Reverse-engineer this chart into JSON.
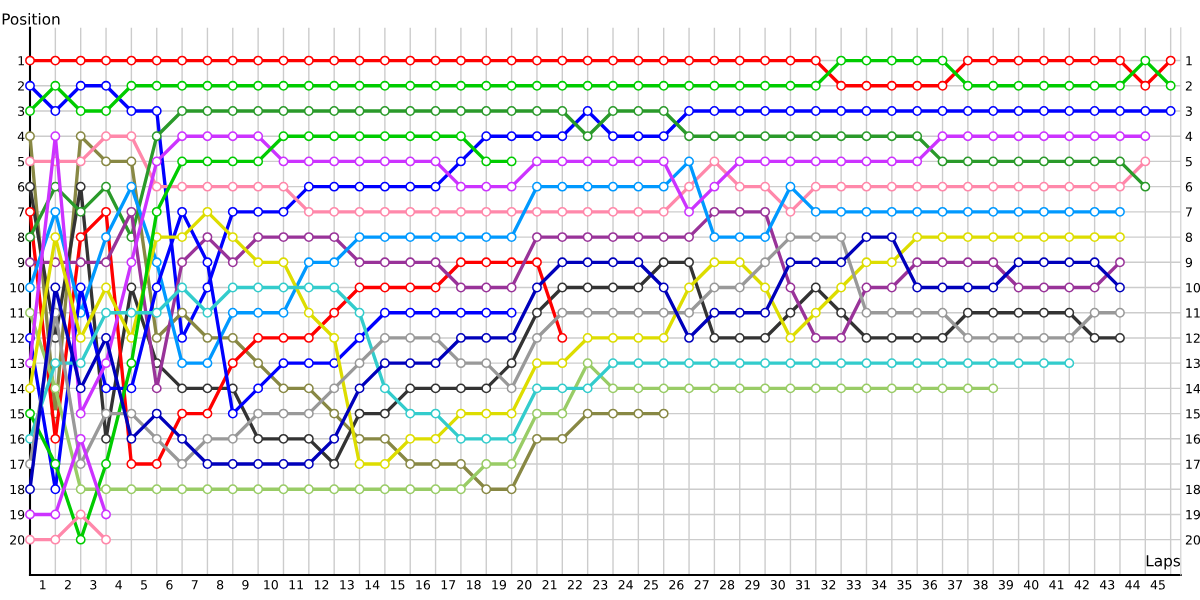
{
  "chart_data": {
    "type": "line",
    "xlabel": "Laps",
    "ylabel": "Position",
    "x": [
      0,
      1,
      2,
      3,
      4,
      5,
      6,
      7,
      8,
      9,
      10,
      11,
      12,
      13,
      14,
      15,
      16,
      17,
      18,
      19,
      20,
      21,
      22,
      23,
      24,
      25,
      26,
      27,
      28,
      29,
      30,
      31,
      32,
      33,
      34,
      35,
      36,
      37,
      38,
      39,
      40,
      41,
      42,
      43,
      44,
      45
    ],
    "xlim": [
      0,
      45.4
    ],
    "ylim": [
      21.4,
      -0.3
    ],
    "y2lim": [
      21.4,
      -0.3
    ],
    "yticks": [
      1,
      2,
      3,
      4,
      5,
      6,
      7,
      8,
      9,
      10,
      11,
      12,
      13,
      14,
      15,
      16,
      17,
      18,
      19,
      20
    ],
    "y2ticks": [
      1,
      2,
      3,
      4,
      5,
      6,
      7,
      8,
      9,
      10,
      11,
      12,
      13,
      14,
      15,
      16,
      17,
      18,
      19,
      20
    ],
    "xticks": [
      {
        "value": 0.5,
        "label": "1"
      },
      {
        "value": 1.5,
        "label": "2"
      },
      {
        "value": 2.5,
        "label": "3"
      },
      {
        "value": 3.5,
        "label": "4"
      },
      {
        "value": 4.5,
        "label": "5"
      },
      {
        "value": 5.5,
        "label": "6"
      },
      {
        "value": 6.5,
        "label": "7"
      },
      {
        "value": 7.5,
        "label": "8"
      },
      {
        "value": 8.5,
        "label": "9"
      },
      {
        "value": 9.5,
        "label": "10"
      },
      {
        "value": 10.5,
        "label": "11"
      },
      {
        "value": 11.5,
        "label": "12"
      },
      {
        "value": 12.5,
        "label": "13"
      },
      {
        "value": 13.5,
        "label": "14"
      },
      {
        "value": 14.5,
        "label": "15"
      },
      {
        "value": 15.5,
        "label": "16"
      },
      {
        "value": 16.5,
        "label": "17"
      },
      {
        "value": 17.5,
        "label": "18"
      },
      {
        "value": 18.5,
        "label": "19"
      },
      {
        "value": 19.5,
        "label": "20"
      },
      {
        "value": 20.5,
        "label": "21"
      },
      {
        "value": 21.5,
        "label": "22"
      },
      {
        "value": 22.5,
        "label": "23"
      },
      {
        "value": 23.5,
        "label": "24"
      },
      {
        "value": 24.5,
        "label": "25"
      },
      {
        "value": 25.5,
        "label": "26"
      },
      {
        "value": 26.5,
        "label": "27"
      },
      {
        "value": 27.5,
        "label": "28"
      },
      {
        "value": 28.5,
        "label": "29"
      },
      {
        "value": 29.5,
        "label": "30"
      },
      {
        "value": 30.5,
        "label": "31"
      },
      {
        "value": 31.5,
        "label": "32"
      },
      {
        "value": 32.5,
        "label": "33"
      },
      {
        "value": 33.5,
        "label": "34"
      },
      {
        "value": 34.5,
        "label": "35"
      },
      {
        "value": 35.5,
        "label": "36"
      },
      {
        "value": 36.5,
        "label": "37"
      },
      {
        "value": 37.5,
        "label": "38"
      },
      {
        "value": 38.5,
        "label": "39"
      },
      {
        "value": 39.5,
        "label": "40"
      },
      {
        "value": 40.5,
        "label": "41"
      },
      {
        "value": 41.5,
        "label": "42"
      },
      {
        "value": 42.5,
        "label": "43"
      },
      {
        "value": 43.5,
        "label": "44"
      },
      {
        "value": 44.5,
        "label": "45"
      },
      {
        "value": 1,
        "label": null
      },
      {
        "value": 2,
        "label": null
      },
      {
        "value": 3,
        "label": null
      },
      {
        "value": 4,
        "label": null
      },
      {
        "value": 5,
        "label": null
      },
      {
        "value": 6,
        "label": null
      },
      {
        "value": 7,
        "label": null
      },
      {
        "value": 8,
        "label": null
      },
      {
        "value": 9,
        "label": null
      },
      {
        "value": 10,
        "label": null
      },
      {
        "value": 11,
        "label": null
      },
      {
        "value": 12,
        "label": null
      },
      {
        "value": 13,
        "label": null
      },
      {
        "value": 14,
        "label": null
      },
      {
        "value": 15,
        "label": null
      },
      {
        "value": 16,
        "label": null
      },
      {
        "value": 17,
        "label": null
      },
      {
        "value": 18,
        "label": null
      },
      {
        "value": 19,
        "label": null
      },
      {
        "value": 20,
        "label": null
      },
      {
        "value": 21,
        "label": null
      },
      {
        "value": 22,
        "label": null
      },
      {
        "value": 23,
        "label": null
      },
      {
        "value": 24,
        "label": null
      },
      {
        "value": 25,
        "label": null
      },
      {
        "value": 26,
        "label": null
      },
      {
        "value": 27,
        "label": null
      },
      {
        "value": 28,
        "label": null
      },
      {
        "value": 29,
        "label": null
      },
      {
        "value": 30,
        "label": null
      },
      {
        "value": 31,
        "label": null
      },
      {
        "value": 32,
        "label": null
      },
      {
        "value": 33,
        "label": null
      },
      {
        "value": 34,
        "label": null
      },
      {
        "value": 35,
        "label": null
      },
      {
        "value": 36,
        "label": null
      },
      {
        "value": 37,
        "label": null
      },
      {
        "value": 38,
        "label": null
      },
      {
        "value": 39,
        "label": null
      },
      {
        "value": 40,
        "label": null
      },
      {
        "value": 41,
        "label": null
      },
      {
        "value": 42,
        "label": null
      },
      {
        "value": 43,
        "label": null
      },
      {
        "value": 44,
        "label": null
      },
      {
        "value": 45,
        "label": null
      }
    ],
    "grid": true,
    "legend": false,
    "marker": "circle",
    "line_style": "solid",
    "series": [
      {
        "color": "#ff0000",
        "values": [
          1,
          1,
          1,
          1,
          1,
          1,
          1,
          1,
          1,
          1,
          1,
          1,
          1,
          1,
          1,
          1,
          1,
          1,
          1,
          1,
          1,
          1,
          1,
          1,
          1,
          1,
          1,
          1,
          1,
          1,
          1,
          1,
          2,
          2,
          2,
          2,
          2,
          1,
          1,
          1,
          1,
          1,
          1,
          1,
          2,
          1
        ]
      },
      {
        "color": "#0000ff",
        "values": [
          2,
          3,
          2,
          2,
          3,
          3,
          12,
          10,
          7,
          7,
          7,
          6,
          6,
          6,
          6,
          6,
          6,
          5,
          4,
          4,
          4,
          4,
          3,
          4,
          4,
          4,
          3,
          3,
          3,
          3,
          3,
          3,
          3,
          3,
          3,
          3,
          3,
          3,
          3,
          3,
          3,
          3,
          3,
          3,
          3,
          3
        ]
      },
      {
        "color": "#00cc00",
        "values": [
          3,
          2,
          3,
          3,
          2,
          2,
          2,
          2,
          2,
          2,
          2,
          2,
          2,
          2,
          2,
          2,
          2,
          2,
          2,
          2,
          2,
          2,
          2,
          2,
          2,
          2,
          2,
          2,
          2,
          2,
          2,
          2,
          1,
          1,
          1,
          1,
          1,
          2,
          2,
          2,
          2,
          2,
          2,
          2,
          1,
          2
        ]
      },
      {
        "color": "#888844",
        "values": [
          4,
          15,
          4,
          5,
          5,
          12,
          11,
          12,
          12,
          13,
          14,
          14,
          15,
          16,
          16,
          17,
          17,
          17,
          18,
          18,
          16,
          16,
          15,
          15,
          15,
          15,
          null,
          null,
          null,
          null,
          null,
          null,
          null,
          null,
          null,
          null,
          null,
          null,
          null,
          null,
          null,
          null,
          null,
          null,
          null,
          null
        ]
      },
      {
        "color": "#ff88aa",
        "values": [
          5,
          5,
          5,
          4,
          4,
          6,
          6,
          6,
          6,
          6,
          6,
          7,
          7,
          7,
          7,
          7,
          7,
          7,
          7,
          7,
          7,
          7,
          7,
          7,
          7,
          7,
          6,
          5,
          6,
          6,
          7,
          6,
          6,
          6,
          6,
          6,
          6,
          6,
          6,
          6,
          6,
          6,
          6,
          6,
          5,
          null
        ]
      },
      {
        "color": "#333333",
        "values": [
          6,
          12,
          6,
          16,
          10,
          13,
          14,
          14,
          14,
          16,
          16,
          16,
          17,
          15,
          15,
          14,
          14,
          14,
          14,
          13,
          11,
          10,
          10,
          10,
          10,
          9,
          9,
          12,
          12,
          12,
          11,
          10,
          11,
          12,
          12,
          12,
          12,
          11,
          11,
          11,
          11,
          11,
          12,
          12,
          null,
          null
        ]
      },
      {
        "color": "#ff0000",
        "values": [
          7,
          16,
          8,
          7,
          17,
          17,
          15,
          15,
          13,
          12,
          12,
          12,
          11,
          10,
          10,
          10,
          10,
          9,
          9,
          9,
          9,
          12,
          null,
          null,
          null,
          null,
          null,
          null,
          null,
          null,
          null,
          null,
          null,
          null,
          null,
          null,
          null,
          null,
          null,
          null,
          null,
          null,
          null,
          null,
          null,
          null
        ]
      },
      {
        "color": "#2a9a2a",
        "values": [
          8,
          6,
          7,
          6,
          8,
          4,
          3,
          3,
          3,
          3,
          3,
          3,
          3,
          3,
          3,
          3,
          3,
          3,
          3,
          3,
          3,
          3,
          4,
          3,
          3,
          3,
          4,
          4,
          4,
          4,
          4,
          4,
          4,
          4,
          4,
          4,
          5,
          5,
          5,
          5,
          5,
          5,
          5,
          5,
          6,
          null
        ]
      },
      {
        "color": "#993399",
        "values": [
          9,
          9,
          9,
          9,
          7,
          14,
          9,
          8,
          9,
          8,
          8,
          8,
          8,
          9,
          9,
          9,
          9,
          10,
          10,
          10,
          8,
          8,
          8,
          8,
          8,
          8,
          8,
          7,
          7,
          7,
          10,
          12,
          12,
          10,
          10,
          9,
          9,
          9,
          9,
          10,
          10,
          10,
          10,
          9,
          null,
          null
        ]
      },
      {
        "color": "#0099ff",
        "values": [
          10,
          7,
          11,
          8,
          6,
          9,
          13,
          13,
          11,
          11,
          11,
          9,
          9,
          8,
          8,
          8,
          8,
          8,
          8,
          8,
          6,
          6,
          6,
          6,
          6,
          6,
          5,
          8,
          8,
          8,
          6,
          7,
          7,
          7,
          7,
          7,
          7,
          7,
          7,
          7,
          7,
          7,
          7,
          7,
          null,
          null
        ]
      },
      {
        "color": "#99cc66",
        "values": [
          11,
          14,
          18,
          18,
          18,
          18,
          18,
          18,
          18,
          18,
          18,
          18,
          18,
          18,
          18,
          18,
          18,
          18,
          17,
          17,
          15,
          15,
          13,
          14,
          14,
          14,
          14,
          14,
          14,
          14,
          14,
          14,
          14,
          14,
          14,
          14,
          14,
          14,
          14,
          null,
          null,
          null,
          null,
          null,
          null,
          null
        ]
      },
      {
        "color": "#0000ff",
        "values": [
          12,
          18,
          10,
          14,
          14,
          10,
          7,
          9,
          15,
          14,
          13,
          13,
          13,
          12,
          11,
          11,
          11,
          11,
          11,
          11,
          null,
          null,
          null,
          null,
          null,
          null,
          null,
          null,
          null,
          null,
          null,
          null,
          null,
          null,
          null,
          null,
          null,
          null,
          null,
          null,
          null,
          null,
          null,
          null,
          null,
          null
        ]
      },
      {
        "color": "#cc33ff",
        "values": [
          13,
          4,
          15,
          13,
          9,
          5,
          4,
          4,
          4,
          4,
          5,
          5,
          5,
          5,
          5,
          5,
          5,
          6,
          6,
          6,
          5,
          5,
          5,
          5,
          5,
          5,
          7,
          6,
          5,
          5,
          5,
          5,
          5,
          5,
          5,
          5,
          4,
          4,
          4,
          4,
          4,
          4,
          4,
          4,
          4,
          null
        ]
      },
      {
        "color": "#dddd00",
        "values": [
          14,
          8,
          12,
          10,
          12,
          8,
          8,
          7,
          8,
          9,
          9,
          11,
          12,
          17,
          17,
          16,
          16,
          15,
          15,
          15,
          13,
          13,
          12,
          12,
          12,
          12,
          10,
          9,
          9,
          10,
          12,
          11,
          10,
          9,
          9,
          8,
          8,
          8,
          8,
          8,
          8,
          8,
          8,
          8,
          null,
          null
        ]
      },
      {
        "color": "#00cc00",
        "values": [
          15,
          17,
          20,
          17,
          13,
          7,
          5,
          5,
          5,
          5,
          4,
          4,
          4,
          4,
          4,
          4,
          4,
          4,
          5,
          5,
          null,
          null,
          null,
          null,
          null,
          null,
          null,
          null,
          null,
          null,
          null,
          null,
          null,
          null,
          null,
          null,
          null,
          null,
          null,
          null,
          null,
          null,
          null,
          null,
          null,
          null
        ]
      },
      {
        "color": "#33cccc",
        "values": [
          16,
          13,
          13,
          11,
          11,
          11,
          10,
          11,
          10,
          10,
          10,
          10,
          10,
          11,
          14,
          15,
          15,
          16,
          16,
          16,
          14,
          14,
          14,
          13,
          13,
          13,
          13,
          13,
          13,
          13,
          13,
          13,
          13,
          13,
          13,
          13,
          13,
          13,
          13,
          13,
          13,
          13,
          null,
          null,
          null,
          null
        ]
      },
      {
        "color": "#999999",
        "values": [
          17,
          11,
          17,
          15,
          15,
          16,
          17,
          16,
          16,
          15,
          15,
          15,
          14,
          13,
          12,
          12,
          12,
          13,
          13,
          14,
          12,
          11,
          11,
          11,
          11,
          11,
          11,
          10,
          10,
          9,
          8,
          8,
          8,
          11,
          11,
          11,
          11,
          12,
          12,
          12,
          12,
          12,
          11,
          11,
          null,
          null
        ]
      },
      {
        "color": "#0000bb",
        "values": [
          18,
          10,
          14,
          12,
          16,
          15,
          16,
          17,
          17,
          17,
          17,
          17,
          16,
          14,
          13,
          13,
          13,
          12,
          12,
          12,
          10,
          9,
          9,
          9,
          9,
          10,
          12,
          11,
          11,
          11,
          9,
          9,
          9,
          8,
          8,
          10,
          10,
          10,
          10,
          9,
          9,
          9,
          9,
          10,
          null,
          null
        ]
      },
      {
        "color": "#cc33ff",
        "values": [
          19,
          19,
          16,
          19,
          null,
          null,
          null,
          null,
          null,
          null,
          null,
          null,
          null,
          null,
          null,
          null,
          null,
          null,
          null,
          null,
          null,
          null,
          null,
          null,
          null,
          null,
          null,
          null,
          null,
          null,
          null,
          null,
          null,
          null,
          null,
          null,
          null,
          null,
          null,
          null,
          null,
          null,
          null,
          null,
          null,
          null
        ]
      },
      {
        "color": "#ff88aa",
        "values": [
          20,
          20,
          19,
          20,
          null,
          null,
          null,
          null,
          null,
          null,
          null,
          null,
          null,
          null,
          null,
          null,
          null,
          null,
          null,
          null,
          null,
          null,
          null,
          null,
          null,
          null,
          null,
          null,
          null,
          null,
          null,
          null,
          null,
          null,
          null,
          null,
          null,
          null,
          null,
          null,
          null,
          null,
          null,
          null,
          null,
          null
        ]
      }
    ]
  }
}
